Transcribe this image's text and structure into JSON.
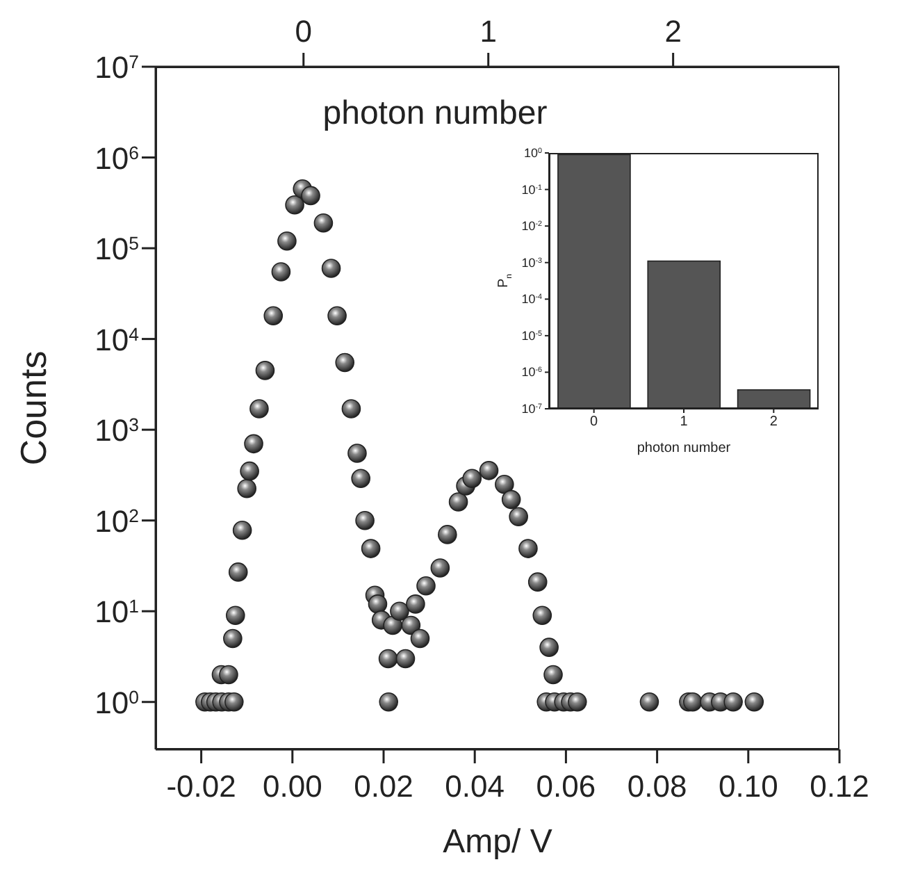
{
  "chart_data": [
    {
      "type": "scatter",
      "xlabel": "Amp/ V",
      "ylabel": "Counts",
      "x2label": "photon number",
      "log": true,
      "marker": "circle",
      "xlim": [
        -0.03,
        0.12
      ],
      "xticks": [
        {
          "value": -0.02,
          "label": "-0.02"
        },
        {
          "value": 0,
          "label": "0.00"
        },
        {
          "value": 0.02,
          "label": "0.02"
        },
        {
          "value": 0.04,
          "label": "0.04"
        },
        {
          "value": 0.06,
          "label": "0.06"
        },
        {
          "value": 0.08,
          "label": "0.08"
        },
        {
          "value": 0.1,
          "label": "0.10"
        },
        {
          "value": 0.12,
          "label": "0.12"
        }
      ],
      "x2lim": [
        -0.8,
        2.9
      ],
      "x2ticks": [
        0,
        1,
        2
      ],
      "ylim": [
        0.3,
        10000000
      ],
      "yticks": [
        {
          "value": 1,
          "label": "10$^{0}$"
        },
        {
          "value": 10,
          "label": "10$^{1}$"
        },
        {
          "value": 100,
          "label": "10$^{2}$"
        },
        {
          "value": 1000,
          "label": "10$^{3}$"
        },
        {
          "value": 10000,
          "label": "10$^{4}$"
        },
        {
          "value": 100000,
          "label": "10$^{5}$"
        },
        {
          "value": 1000000,
          "label": "10$^{6}$"
        },
        {
          "value": 10000000,
          "label": "10$^{7}$"
        }
      ],
      "series": [
        {
          "color": "#222222",
          "x": [
            -0.0192,
            -0.018,
            -0.0168,
            -0.0155,
            -0.014,
            -0.0128,
            -0.0156,
            -0.014,
            -0.0131,
            -0.0125,
            -0.0119,
            -0.011,
            -0.01,
            -0.0094,
            -0.0085,
            -0.0073,
            -0.006,
            -0.0042,
            -0.0025,
            -0.0012,
            0.0005,
            0.0022,
            0.004,
            0.0068,
            0.0085,
            0.0098,
            0.0115,
            0.0129,
            0.0142,
            0.015,
            0.0159,
            0.0172,
            0.0181,
            0.0187,
            0.0195,
            0.0211,
            0.021,
            0.022,
            0.0235,
            0.0248,
            0.026,
            0.027,
            0.028,
            0.0293,
            0.0324,
            0.034,
            0.0364,
            0.038,
            0.0394,
            0.0431,
            0.0465,
            0.048,
            0.0496,
            0.0517,
            0.0538,
            0.0548,
            0.0563,
            0.0572,
            0.0557,
            0.0575,
            0.0595,
            0.061,
            0.0625,
            0.0783,
            0.0869,
            0.0878,
            0.0915,
            0.0939,
            0.0967,
            0.1013
          ],
          "values": [
            1,
            1,
            1,
            1,
            1,
            1,
            2,
            2,
            5,
            9,
            27,
            78,
            225,
            350,
            700,
            1700,
            4500,
            18000,
            55000,
            120000,
            300000,
            450000,
            380000,
            190000,
            60000,
            18000,
            5500,
            1700,
            550,
            290,
            100,
            49,
            15,
            12,
            8,
            1,
            3,
            7,
            10,
            3,
            7,
            12,
            5,
            19,
            30,
            70,
            160,
            240,
            290,
            355,
            250,
            170,
            110,
            49,
            21,
            9,
            4,
            2,
            1,
            1,
            1,
            1,
            1,
            1,
            1,
            1,
            1,
            1,
            1,
            1
          ]
        }
      ]
    },
    {
      "type": "bar",
      "xlabel": "photon number",
      "ylabel": "P$_{n}$",
      "log": true,
      "categories": [
        "0",
        "1",
        "2"
      ],
      "values": [
        0.9,
        0.0011,
        3.3e-07
      ],
      "color": "#555555",
      "ylim": [
        1e-07,
        1
      ],
      "yticks": [
        {
          "value": 1e-07,
          "label": "10$^{-7}$"
        },
        {
          "value": 1e-06,
          "label": "10$^{-6}$"
        },
        {
          "value": 1e-05,
          "label": "10$^{-5}$"
        },
        {
          "value": 0.0001,
          "label": "10$^{-4}$"
        },
        {
          "value": 0.001,
          "label": "10$^{-3}$"
        },
        {
          "value": 0.01,
          "label": "10$^{-2}$"
        },
        {
          "value": 0.1,
          "label": "10$^{-1}$"
        },
        {
          "value": 1,
          "label": "10$^{0}$"
        }
      ]
    }
  ]
}
